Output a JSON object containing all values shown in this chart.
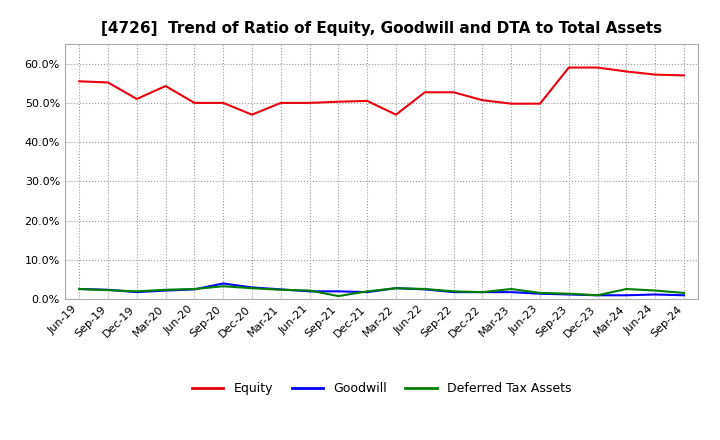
{
  "title": "[4726]  Trend of Ratio of Equity, Goodwill and DTA to Total Assets",
  "x_labels": [
    "Jun-19",
    "Sep-19",
    "Dec-19",
    "Mar-20",
    "Jun-20",
    "Sep-20",
    "Dec-20",
    "Mar-21",
    "Jun-21",
    "Sep-21",
    "Dec-21",
    "Mar-22",
    "Jun-22",
    "Sep-22",
    "Dec-22",
    "Mar-23",
    "Jun-23",
    "Sep-23",
    "Dec-23",
    "Mar-24",
    "Jun-24",
    "Sep-24"
  ],
  "equity": [
    0.555,
    0.552,
    0.51,
    0.543,
    0.5,
    0.5,
    0.47,
    0.5,
    0.5,
    0.503,
    0.505,
    0.47,
    0.527,
    0.527,
    0.507,
    0.498,
    0.498,
    0.59,
    0.59,
    0.58,
    0.572,
    0.57
  ],
  "goodwill": [
    0.026,
    0.024,
    0.018,
    0.022,
    0.025,
    0.04,
    0.03,
    0.025,
    0.02,
    0.02,
    0.018,
    0.028,
    0.025,
    0.018,
    0.018,
    0.018,
    0.014,
    0.012,
    0.01,
    0.01,
    0.012,
    0.01
  ],
  "dta": [
    0.026,
    0.023,
    0.02,
    0.024,
    0.026,
    0.033,
    0.028,
    0.024,
    0.022,
    0.008,
    0.02,
    0.028,
    0.026,
    0.02,
    0.018,
    0.026,
    0.016,
    0.014,
    0.01,
    0.026,
    0.022,
    0.016
  ],
  "equity_color": "#e8000e",
  "goodwill_color": "#0000ff",
  "dta_color": "#008000",
  "background_color": "#ffffff",
  "plot_bg_color": "#ffffff",
  "grid_color": "#999999",
  "ylim": [
    0.0,
    0.65
  ],
  "yticks": [
    0.0,
    0.1,
    0.2,
    0.3,
    0.4,
    0.5,
    0.6
  ],
  "legend_labels": [
    "Equity",
    "Goodwill",
    "Deferred Tax Assets"
  ],
  "title_fontsize": 11,
  "tick_fontsize": 8,
  "legend_fontsize": 9,
  "linewidth": 1.5
}
